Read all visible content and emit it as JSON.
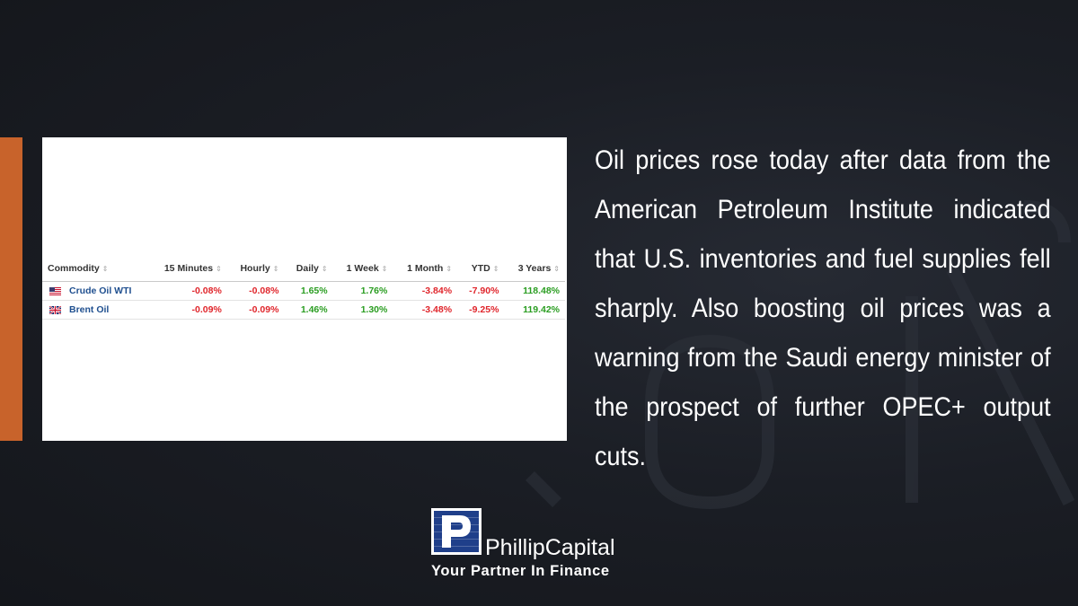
{
  "table": {
    "headers": [
      "Commodity",
      "15 Minutes",
      "Hourly",
      "Daily",
      "1 Week",
      "1 Month",
      "YTD",
      "3 Years"
    ],
    "rows": [
      {
        "flag": "us-flag-icon",
        "name": "Crude Oil WTI",
        "values": [
          "-0.08%",
          "-0.08%",
          "1.65%",
          "1.76%",
          "-3.84%",
          "-7.90%",
          "118.48%"
        ]
      },
      {
        "flag": "uk-flag-icon",
        "name": "Brent Oil",
        "values": [
          "-0.09%",
          "-0.09%",
          "1.46%",
          "1.30%",
          "-3.48%",
          "-9.25%",
          "119.42%"
        ]
      }
    ],
    "colors": {
      "negative": "#e0252b",
      "positive": "#2a9d21",
      "name": "#1f4f8f"
    }
  },
  "article": {
    "text": "Oil prices rose today after data from the American Petroleum Institute indicated that U.S. inventories and fuel supplies fell sharply. Also boosting oil prices was a warning from the Saudi energy minister of the prospect of further OPEC+ output cuts."
  },
  "brand": {
    "name": "PhillipCapital",
    "tagline": "Your Partner In Finance",
    "logo_icon": "phillipcapital-logo-icon",
    "accent": "#c8632b",
    "brand_blue": "#1f3f8a"
  }
}
